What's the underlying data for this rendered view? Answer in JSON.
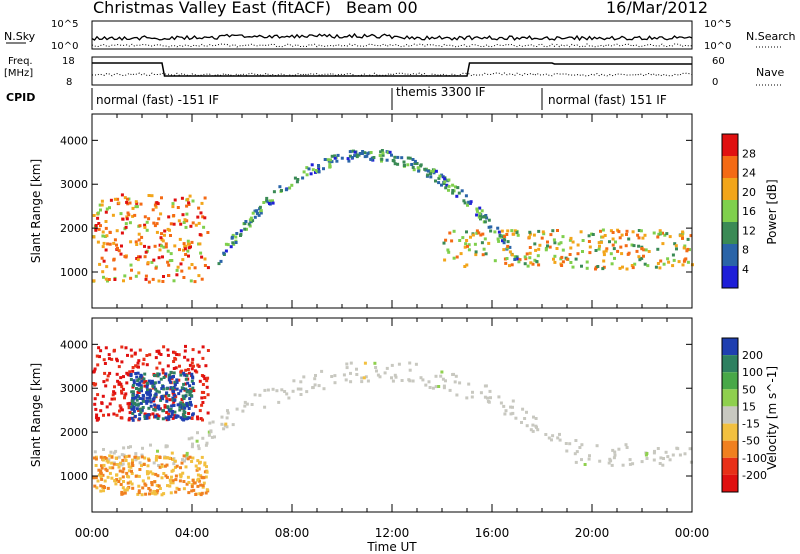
{
  "header": {
    "title": "Christmas Valley East (fitACF)",
    "beam": "Beam 00",
    "date": "16/Mar/2012"
  },
  "top_panels": {
    "nsky_label": "N.Sky",
    "nsky_ticks": [
      "10^5",
      "10^0"
    ],
    "nsearch_label": "N.Search",
    "nsearch_ticks": [
      "10^5",
      "10^0"
    ],
    "freq_label_line1": "Freq.",
    "freq_label_line2": "[MHz]",
    "freq_ticks": [
      "18",
      "8"
    ],
    "nave_label": "Nave",
    "nave_ticks": [
      "60",
      "0"
    ],
    "cpid_label": "CPID",
    "cpid_segments": [
      {
        "text": "normal (fast) -151 IF",
        "start_hour": 0.0,
        "end_hour": 12.0
      },
      {
        "text": "themis 3300 IF",
        "start_hour": 12.0,
        "end_hour": 18.0
      },
      {
        "text": "normal (fast) 151 IF",
        "start_hour": 18.0,
        "end_hour": 24.0
      }
    ]
  },
  "chart_data": [
    {
      "type": "heatmap",
      "quantity": "power",
      "ylabel": "Slant Range [km]",
      "xlabel": "Time UT",
      "x_ticks": [
        "00:00",
        "04:00",
        "08:00",
        "12:00",
        "16:00",
        "20:00",
        "00:00"
      ],
      "xlim": [
        0,
        24
      ],
      "y_ticks": [
        1000,
        2000,
        3000,
        4000
      ],
      "ylim": [
        180,
        4600
      ],
      "colorbar": {
        "label": "Power [dB]",
        "ticks": [
          "4",
          "8",
          "12",
          "16",
          "20",
          "24",
          "28"
        ],
        "range": [
          0,
          30
        ],
        "colors": [
          "#1f1fd8",
          "#2a64a8",
          "#3a8a55",
          "#7fcf4c",
          "#f2a51a",
          "#f46a14",
          "#e01010"
        ]
      },
      "features": [
        {
          "name": "near-range band",
          "hours": [
            0.0,
            4.6
          ],
          "range_km": [
            800,
            2800
          ],
          "level_db": 22
        },
        {
          "name": "arc echo",
          "hours": [
            5.0,
            17.0
          ],
          "range_km": [
            1300,
            3700
          ],
          "level_db": 10
        },
        {
          "name": "mid-range band",
          "hours": [
            14.0,
            24.0
          ],
          "range_km": [
            1100,
            2000
          ],
          "level_db": 18
        }
      ]
    },
    {
      "type": "heatmap",
      "quantity": "velocity",
      "ylabel": "Slant Range [km]",
      "xlabel": "Time UT",
      "x_ticks": [
        "00:00",
        "04:00",
        "08:00",
        "12:00",
        "16:00",
        "20:00",
        "00:00"
      ],
      "xlim": [
        0,
        24
      ],
      "y_ticks": [
        1000,
        2000,
        3000,
        4000
      ],
      "ylim": [
        180,
        4600
      ],
      "colorbar": {
        "label": "Velocity [m s^-1]",
        "ticks": [
          "200",
          "100",
          "50",
          "15",
          "-15",
          "-50",
          "-100",
          "-200"
        ],
        "range": [
          -250,
          250
        ],
        "colors": [
          "#1f3fb0",
          "#2e8060",
          "#48a848",
          "#8fd04e",
          "#c8c8c0",
          "#f2c040",
          "#f08020",
          "#e83018",
          "#e01010"
        ]
      },
      "features": [
        {
          "name": "ground scatter",
          "hours": [
            0.0,
            24.0
          ],
          "range_km": [
            1000,
            3600
          ],
          "velocity": 0
        },
        {
          "name": "red patches",
          "hours": [
            0.0,
            4.6
          ],
          "range_km": [
            2300,
            4000
          ],
          "velocity": -200
        },
        {
          "name": "blue patches",
          "hours": [
            1.5,
            4.0
          ],
          "range_km": [
            2300,
            3400
          ],
          "velocity": 200
        },
        {
          "name": "orange band",
          "hours": [
            0.0,
            4.6
          ],
          "range_km": [
            600,
            1500
          ],
          "velocity": -80
        }
      ]
    }
  ],
  "time_axis_label": "Time UT"
}
